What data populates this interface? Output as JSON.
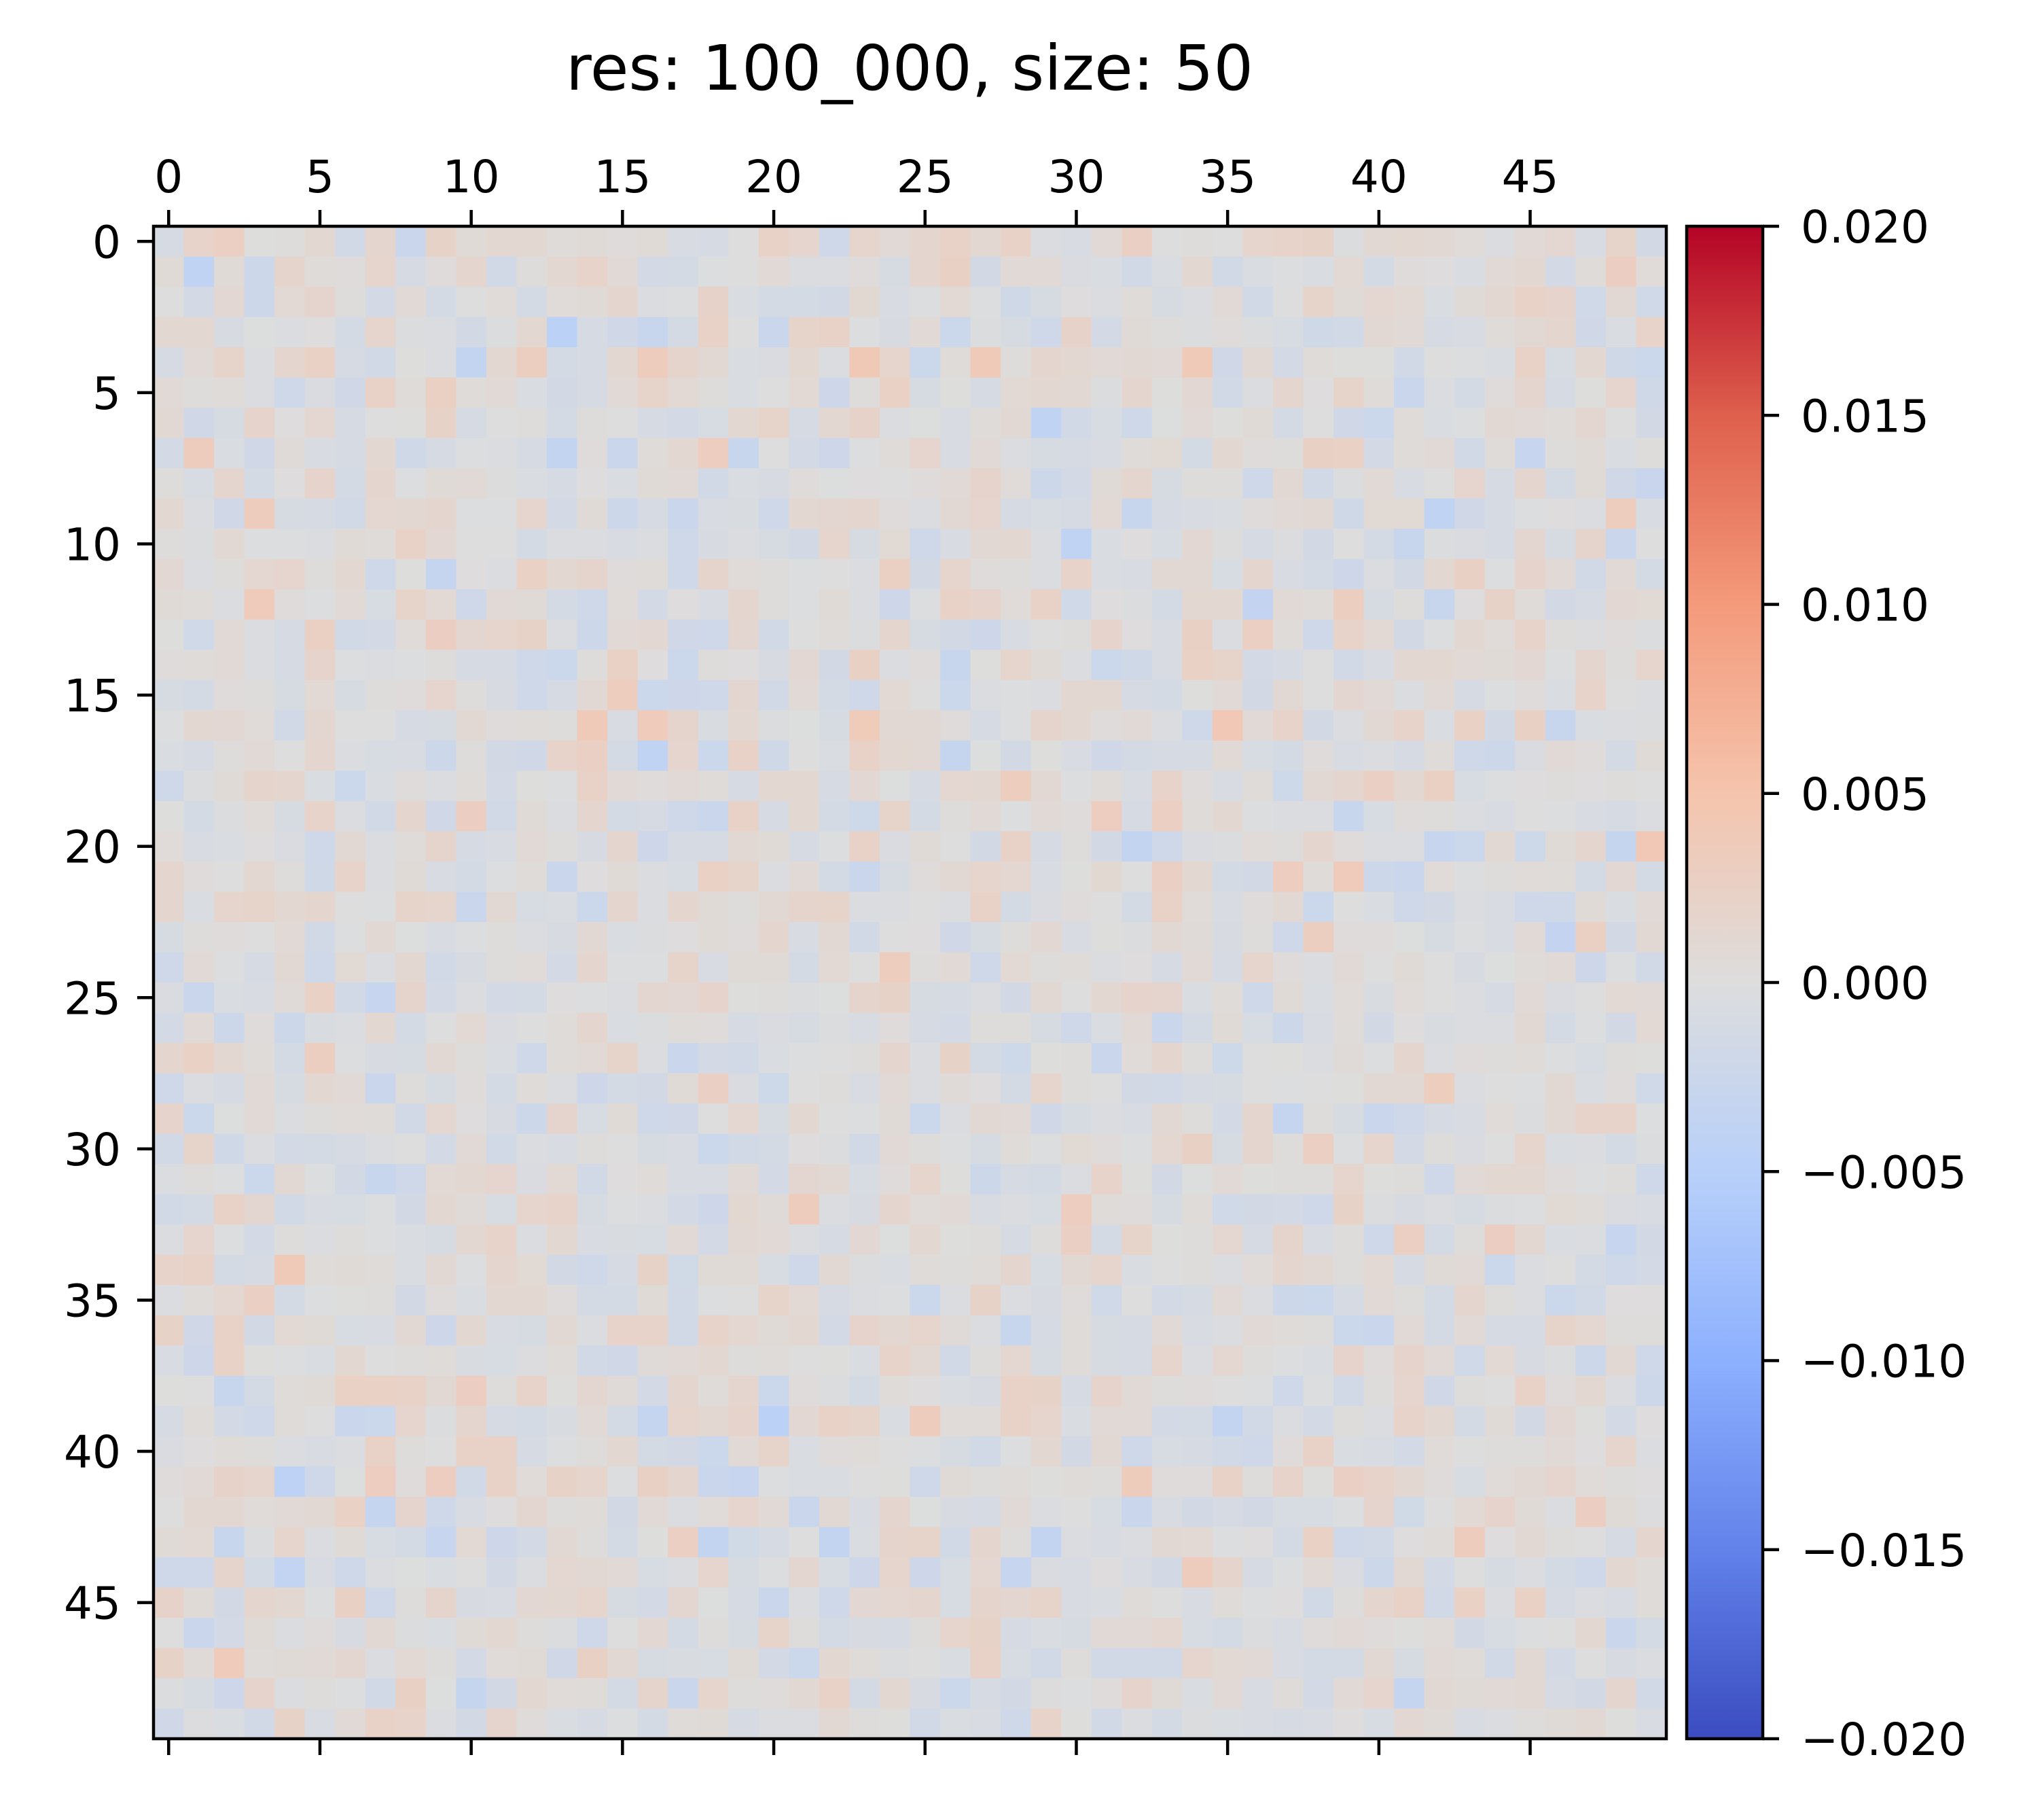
{
  "chart_data": {
    "type": "heatmap",
    "title": "res: 100_000, size: 50",
    "rows": 50,
    "cols": 50,
    "x_ticks": [
      0,
      5,
      10,
      15,
      20,
      25,
      30,
      35,
      40,
      45
    ],
    "y_ticks": [
      0,
      5,
      10,
      15,
      20,
      25,
      30,
      35,
      40,
      45
    ],
    "x_ticks_position": "top",
    "y_ticks_position": "left",
    "colormap": "coolwarm",
    "vmin": -0.02,
    "vmax": 0.02,
    "colorbar": {
      "position": "right",
      "ticks": [
        0.02,
        0.015,
        0.01,
        0.005,
        0.0,
        -0.005,
        -0.01,
        -0.015,
        -0.02
      ],
      "tick_labels": [
        "0.020",
        "0.015",
        "0.010",
        "0.005",
        "0.000",
        "−0.005",
        "−0.010",
        "−0.015",
        "−0.020"
      ]
    },
    "value_summary": "50×50 matrix of small values, mostly within ±0.003 (near-neutral tint); individual values not legible",
    "grid": false
  }
}
